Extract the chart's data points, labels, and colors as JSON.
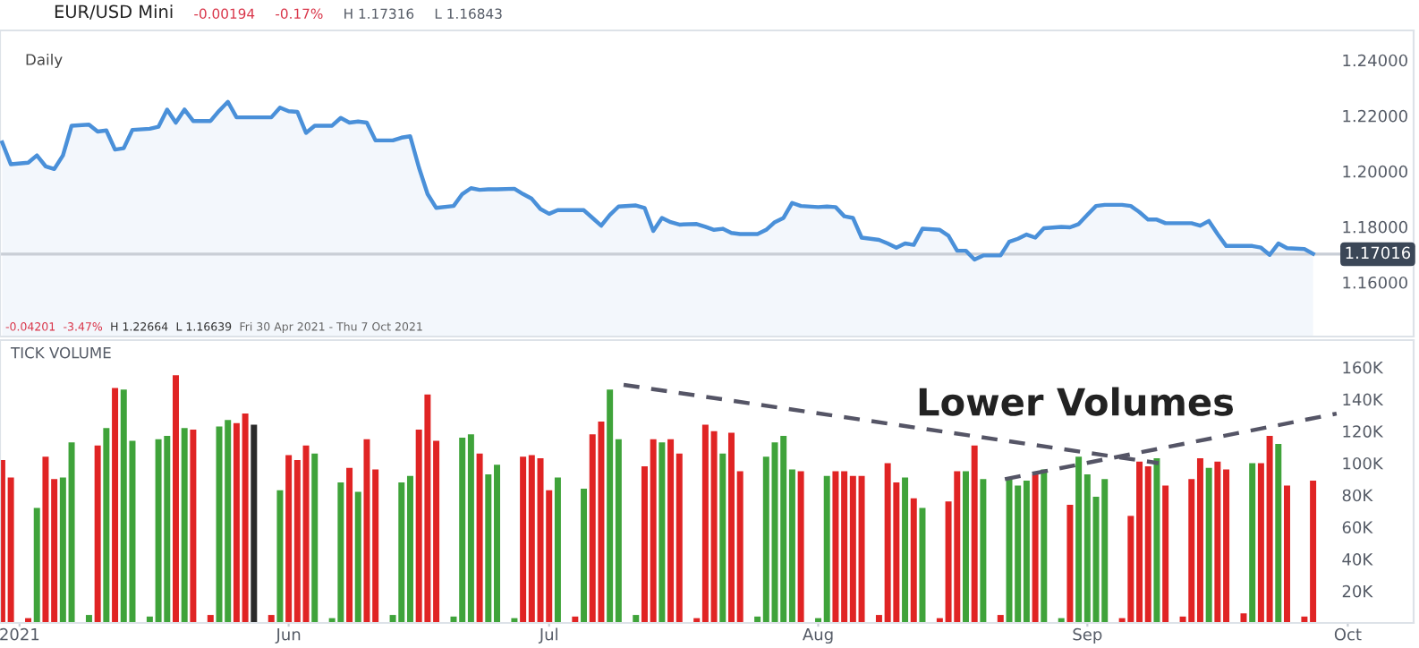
{
  "chart_data": [
    {
      "type": "area",
      "title": "EUR/USD Mini",
      "subtitle": "Daily",
      "color": "#4a90d9",
      "annotations": [
        "-0.00194",
        "-0.17%",
        "H 1.17316",
        "L 1.16843",
        "-0.04201",
        "-3.47%",
        "H 1.22664",
        "L 1.16639",
        "Fri 30 Apr 2021 - Thu 7 Oct 2021"
      ],
      "x": [
        "2021-04-29",
        "2021-04-30",
        "2021-05-02",
        "2021-05-03",
        "2021-05-04",
        "2021-05-05",
        "2021-05-06",
        "2021-05-07",
        "2021-05-09",
        "2021-05-10",
        "2021-05-11",
        "2021-05-12",
        "2021-05-13",
        "2021-05-14",
        "2021-05-16",
        "2021-05-17",
        "2021-05-18",
        "2021-05-19",
        "2021-05-20",
        "2021-05-21",
        "2021-05-23",
        "2021-05-24",
        "2021-05-25",
        "2021-05-26",
        "2021-05-27",
        "2021-05-28",
        "2021-05-30",
        "2021-05-31",
        "2021-06-01",
        "2021-06-02",
        "2021-06-03",
        "2021-06-04",
        "2021-06-06",
        "2021-06-07",
        "2021-06-08",
        "2021-06-09",
        "2021-06-10",
        "2021-06-11",
        "2021-06-13",
        "2021-06-14",
        "2021-06-15",
        "2021-06-16",
        "2021-06-17",
        "2021-06-18",
        "2021-06-20",
        "2021-06-21",
        "2021-06-22",
        "2021-06-23",
        "2021-06-24",
        "2021-06-25",
        "2021-06-27",
        "2021-06-28",
        "2021-06-29",
        "2021-06-30",
        "2021-07-01",
        "2021-07-02",
        "2021-07-04",
        "2021-07-05",
        "2021-07-06",
        "2021-07-07",
        "2021-07-08",
        "2021-07-09",
        "2021-07-11",
        "2021-07-12",
        "2021-07-13",
        "2021-07-14",
        "2021-07-15",
        "2021-07-16",
        "2021-07-18",
        "2021-07-19",
        "2021-07-20",
        "2021-07-21",
        "2021-07-22",
        "2021-07-23",
        "2021-07-25",
        "2021-07-26",
        "2021-07-27",
        "2021-07-28",
        "2021-07-29",
        "2021-07-30",
        "2021-08-01",
        "2021-08-02",
        "2021-08-03",
        "2021-08-04",
        "2021-08-05",
        "2021-08-06",
        "2021-08-08",
        "2021-08-09",
        "2021-08-10",
        "2021-08-11",
        "2021-08-12",
        "2021-08-13",
        "2021-08-15",
        "2021-08-16",
        "2021-08-17",
        "2021-08-18",
        "2021-08-19",
        "2021-08-20",
        "2021-08-22",
        "2021-08-23",
        "2021-08-24",
        "2021-08-25",
        "2021-08-26",
        "2021-08-27",
        "2021-08-29",
        "2021-08-30",
        "2021-08-31",
        "2021-09-01",
        "2021-09-02",
        "2021-09-03",
        "2021-09-05",
        "2021-09-06",
        "2021-09-07",
        "2021-09-08",
        "2021-09-09",
        "2021-09-10",
        "2021-09-12",
        "2021-09-13",
        "2021-09-14",
        "2021-09-15",
        "2021-09-16",
        "2021-09-17",
        "2021-09-19",
        "2021-09-20",
        "2021-09-21",
        "2021-09-22",
        "2021-09-23",
        "2021-09-24",
        "2021-09-26",
        "2021-09-27"
      ],
      "values": [
        1.2104,
        1.2025,
        1.2031,
        1.2057,
        1.2018,
        1.2008,
        1.2057,
        1.2164,
        1.2168,
        1.2143,
        1.2147,
        1.2078,
        1.2083,
        1.2149,
        1.2153,
        1.216,
        1.2222,
        1.2175,
        1.2222,
        1.2181,
        1.2181,
        1.2218,
        1.225,
        1.2194,
        1.2194,
        1.2194,
        1.2194,
        1.2229,
        1.2216,
        1.2214,
        1.2138,
        1.2164,
        1.2164,
        1.2192,
        1.2175,
        1.2179,
        1.2175,
        1.2111,
        1.2111,
        1.2121,
        1.2126,
        1.2014,
        1.1918,
        1.1868,
        1.1875,
        1.1918,
        1.1939,
        1.1933,
        1.1935,
        1.1935,
        1.1937,
        1.1918,
        1.1901,
        1.1864,
        1.1847,
        1.186,
        1.186,
        1.186,
        1.1832,
        1.1804,
        1.1843,
        1.1873,
        1.1877,
        1.1868,
        1.1785,
        1.1832,
        1.1817,
        1.1808,
        1.181,
        1.18,
        1.1789,
        1.1793,
        1.1778,
        1.1774,
        1.1774,
        1.1789,
        1.1817,
        1.1832,
        1.1886,
        1.1875,
        1.1871,
        1.1873,
        1.1871,
        1.1838,
        1.1832,
        1.1761,
        1.1753,
        1.174,
        1.1725,
        1.174,
        1.1735,
        1.1793,
        1.1789,
        1.1768,
        1.1714,
        1.1714,
        1.1682,
        1.1697,
        1.1697,
        1.1746,
        1.1757,
        1.1772,
        1.1761,
        1.1795,
        1.18,
        1.1798,
        1.181,
        1.1843,
        1.1875,
        1.1879,
        1.1879,
        1.1875,
        1.1853,
        1.1826,
        1.1826,
        1.1813,
        1.1813,
        1.1813,
        1.1804,
        1.1821,
        1.1774,
        1.1731,
        1.1731,
        1.1731,
        1.1725,
        1.1699,
        1.174,
        1.1723,
        1.172,
        1.1703
      ],
      "ylim": [
        1.1405,
        1.2507
      ],
      "yticks": [
        {
          "value": 1.16,
          "label": "1.16000"
        },
        {
          "value": 1.18,
          "label": "1.18000"
        },
        {
          "value": 1.2,
          "label": "1.20000"
        },
        {
          "value": 1.22,
          "label": "1.22000"
        },
        {
          "value": 1.24,
          "label": "1.24000"
        }
      ],
      "ref_lines": [
        {
          "axis": "y",
          "value": 1.17016,
          "label": "1.17016",
          "color": "#c9ced6"
        }
      ],
      "tick_labels": "y",
      "xlim": [
        "2021-04-28T18:00",
        "2021-10-08T14:00"
      ]
    },
    {
      "type": "bar",
      "title": "TICK VOLUME",
      "annotations": [
        "Lower Volumes"
      ],
      "x": [
        "2021-04-29",
        "2021-04-30",
        "2021-05-02",
        "2021-05-03",
        "2021-05-04",
        "2021-05-05",
        "2021-05-06",
        "2021-05-07",
        "2021-05-09",
        "2021-05-10",
        "2021-05-11",
        "2021-05-12",
        "2021-05-13",
        "2021-05-14",
        "2021-05-16",
        "2021-05-17",
        "2021-05-18",
        "2021-05-19",
        "2021-05-20",
        "2021-05-21",
        "2021-05-23",
        "2021-05-24",
        "2021-05-25",
        "2021-05-26",
        "2021-05-27",
        "2021-05-28",
        "2021-05-30",
        "2021-05-31",
        "2021-06-01",
        "2021-06-02",
        "2021-06-03",
        "2021-06-04",
        "2021-06-06",
        "2021-06-07",
        "2021-06-08",
        "2021-06-09",
        "2021-06-10",
        "2021-06-11",
        "2021-06-13",
        "2021-06-14",
        "2021-06-15",
        "2021-06-16",
        "2021-06-17",
        "2021-06-18",
        "2021-06-20",
        "2021-06-21",
        "2021-06-22",
        "2021-06-23",
        "2021-06-24",
        "2021-06-25",
        "2021-06-27",
        "2021-06-28",
        "2021-06-29",
        "2021-06-30",
        "2021-07-01",
        "2021-07-02",
        "2021-07-04",
        "2021-07-05",
        "2021-07-06",
        "2021-07-07",
        "2021-07-08",
        "2021-07-09",
        "2021-07-11",
        "2021-07-12",
        "2021-07-13",
        "2021-07-14",
        "2021-07-15",
        "2021-07-16",
        "2021-07-18",
        "2021-07-19",
        "2021-07-20",
        "2021-07-21",
        "2021-07-22",
        "2021-07-23",
        "2021-07-25",
        "2021-07-26",
        "2021-07-27",
        "2021-07-28",
        "2021-07-29",
        "2021-07-30",
        "2021-08-01",
        "2021-08-02",
        "2021-08-03",
        "2021-08-04",
        "2021-08-05",
        "2021-08-06",
        "2021-08-08",
        "2021-08-09",
        "2021-08-10",
        "2021-08-11",
        "2021-08-12",
        "2021-08-13",
        "2021-08-15",
        "2021-08-16",
        "2021-08-17",
        "2021-08-18",
        "2021-08-19",
        "2021-08-20",
        "2021-08-22",
        "2021-08-23",
        "2021-08-24",
        "2021-08-25",
        "2021-08-26",
        "2021-08-27",
        "2021-08-29",
        "2021-08-30",
        "2021-08-31",
        "2021-09-01",
        "2021-09-02",
        "2021-09-03",
        "2021-09-05",
        "2021-09-06",
        "2021-09-07",
        "2021-09-08",
        "2021-09-09",
        "2021-09-10",
        "2021-09-12",
        "2021-09-13",
        "2021-09-14",
        "2021-09-15",
        "2021-09-16",
        "2021-09-17",
        "2021-09-19",
        "2021-09-20",
        "2021-09-21",
        "2021-09-22",
        "2021-09-23",
        "2021-09-24",
        "2021-09-26",
        "2021-09-27"
      ],
      "series": [
        {
          "type": "bar",
          "values": [
            102,
            91,
            3,
            72,
            104,
            90,
            91,
            113,
            5,
            111,
            122,
            147,
            146,
            114,
            4,
            115,
            117,
            155,
            122,
            121,
            5,
            123,
            127,
            125,
            131,
            124,
            5,
            83,
            105,
            102,
            111,
            106,
            3,
            88,
            97,
            82,
            115,
            96,
            5,
            88,
            92,
            121,
            143,
            114,
            4,
            116,
            118,
            106,
            93,
            99,
            3,
            104,
            105,
            103,
            83,
            91,
            4,
            84,
            118,
            126,
            146,
            115,
            5,
            98,
            115,
            113,
            115,
            106,
            3,
            124,
            120,
            106,
            119,
            95,
            4,
            104,
            113,
            117,
            96,
            95,
            3,
            92,
            95,
            95,
            92,
            92,
            5,
            100,
            88,
            91,
            78,
            72,
            3,
            76,
            95,
            95,
            111,
            90,
            5,
            90,
            86,
            89,
            93,
            96,
            3,
            74,
            104,
            93,
            79,
            90,
            3,
            67,
            101,
            98,
            103,
            86,
            4,
            90,
            103,
            97,
            101,
            96,
            6,
            100,
            100,
            117,
            112,
            86,
            4,
            89
          ],
          "colors": [
            "#e02424",
            "#e02424",
            "#e02424",
            "#3fa33a",
            "#e02424",
            "#e02424",
            "#3fa33a",
            "#3fa33a",
            "#3fa33a",
            "#e02424",
            "#3fa33a",
            "#e02424",
            "#3fa33a",
            "#3fa33a",
            "#3fa33a",
            "#3fa33a",
            "#3fa33a",
            "#e02424",
            "#3fa33a",
            "#e02424",
            "#e02424",
            "#3fa33a",
            "#3fa33a",
            "#e02424",
            "#e02424",
            "#2a2a2a",
            "#e02424",
            "#3fa33a",
            "#e02424",
            "#e02424",
            "#e02424",
            "#3fa33a",
            "#3fa33a",
            "#3fa33a",
            "#e02424",
            "#3fa33a",
            "#e02424",
            "#e02424",
            "#3fa33a",
            "#3fa33a",
            "#3fa33a",
            "#e02424",
            "#e02424",
            "#e02424",
            "#3fa33a",
            "#3fa33a",
            "#3fa33a",
            "#e02424",
            "#3fa33a",
            "#3fa33a",
            "#3fa33a",
            "#e02424",
            "#e02424",
            "#e02424",
            "#e02424",
            "#3fa33a",
            "#e02424",
            "#3fa33a",
            "#e02424",
            "#e02424",
            "#3fa33a",
            "#3fa33a",
            "#3fa33a",
            "#e02424",
            "#e02424",
            "#3fa33a",
            "#e02424",
            "#e02424",
            "#e02424",
            "#e02424",
            "#e02424",
            "#3fa33a",
            "#e02424",
            "#e02424",
            "#3fa33a",
            "#3fa33a",
            "#3fa33a",
            "#3fa33a",
            "#3fa33a",
            "#e02424",
            "#3fa33a",
            "#3fa33a",
            "#e02424",
            "#e02424",
            "#e02424",
            "#e02424",
            "#e02424",
            "#e02424",
            "#e02424",
            "#3fa33a",
            "#e02424",
            "#3fa33a",
            "#e02424",
            "#e02424",
            "#e02424",
            "#3fa33a",
            "#e02424",
            "#3fa33a",
            "#e02424",
            "#3fa33a",
            "#3fa33a",
            "#3fa33a",
            "#e02424",
            "#3fa33a",
            "#3fa33a",
            "#e02424",
            "#3fa33a",
            "#3fa33a",
            "#3fa33a",
            "#3fa33a",
            "#e02424",
            "#e02424",
            "#e02424",
            "#e02424",
            "#3fa33a",
            "#e02424",
            "#e02424",
            "#e02424",
            "#e02424",
            "#3fa33a",
            "#e02424",
            "#e02424",
            "#e02424",
            "#3fa33a",
            "#e02424",
            "#e02424",
            "#3fa33a",
            "#e02424",
            "#e02424",
            "#e02424"
          ]
        },
        {
          "type": "line",
          "x": [
            "2021-07-09T14:00",
            "2021-09-09T05:00"
          ],
          "values": [
            149,
            100
          ],
          "color": "#555566",
          "line_style": "dashed"
        },
        {
          "type": "line",
          "x": [
            "2021-08-22T12:00",
            "2021-09-29T17:00"
          ],
          "values": [
            90,
            131
          ],
          "color": "#555566",
          "line_style": "dashed"
        }
      ],
      "xlim": [
        "2021-04-28T18:00",
        "2021-10-08T14:00"
      ],
      "xticks": [
        {
          "value": "2021-05-01",
          "label": "2021"
        },
        {
          "value": "2021-06-01",
          "label": "Jun"
        },
        {
          "value": "2021-07-01",
          "label": "Jul"
        },
        {
          "value": "2021-08-01",
          "label": "Aug"
        },
        {
          "value": "2021-09-01",
          "label": "Sep"
        },
        {
          "value": "2021-10-01",
          "label": "Oct"
        }
      ],
      "ylim": [
        0,
        177
      ],
      "yticks": [
        {
          "value": 20,
          "label": "20K"
        },
        {
          "value": 40,
          "label": "40K"
        },
        {
          "value": 60,
          "label": "60K"
        },
        {
          "value": 80,
          "label": "80K"
        },
        {
          "value": 100,
          "label": "100K"
        },
        {
          "value": 120,
          "label": "120K"
        },
        {
          "value": 140,
          "label": "140K"
        },
        {
          "value": 160,
          "label": "160K"
        }
      ]
    }
  ]
}
